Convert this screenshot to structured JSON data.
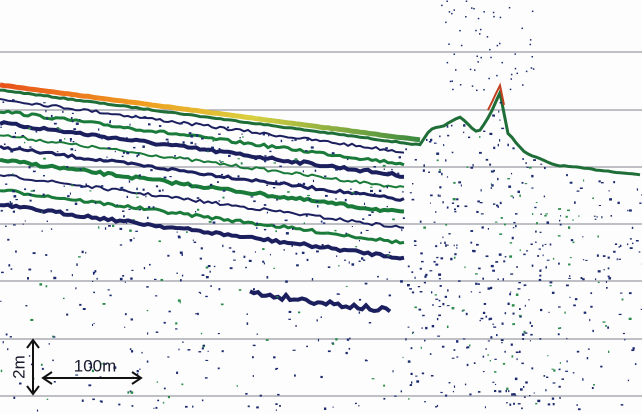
{
  "scale_bars": {
    "vertical": {
      "label": "2m"
    },
    "horizontal": {
      "label": "100m"
    }
  }
}
